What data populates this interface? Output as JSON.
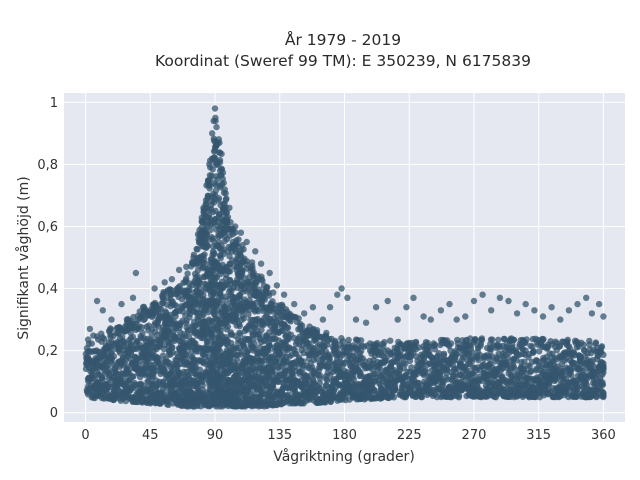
{
  "chart_data": {
    "type": "scatter",
    "title_lines": [
      "År 1979 - 2019",
      "Koordinat (Sweref 99 TM): E 350239, N 6175839"
    ],
    "xlabel": "Vågriktning (grader)",
    "ylabel": "Signifikant våghöjd (m)",
    "xlim": [
      -15,
      375
    ],
    "ylim": [
      -0.03,
      1.03
    ],
    "x_ticks": [
      0,
      45,
      90,
      135,
      180,
      225,
      270,
      315,
      360
    ],
    "x_tick_labels": [
      "0",
      "45",
      "90",
      "135",
      "180",
      "225",
      "270",
      "315",
      "360"
    ],
    "y_ticks": [
      0,
      0.2,
      0.4,
      0.6,
      0.8,
      1
    ],
    "y_tick_labels": [
      "0",
      "0,2",
      "0,4",
      "0,6",
      "0,8",
      "1"
    ],
    "grid": true,
    "marker_color": "#34566d",
    "background_color": "#e5e8f0",
    "envelope": [
      {
        "x": 0,
        "low": 0.05,
        "high": 0.24
      },
      {
        "x": 20,
        "low": 0.04,
        "high": 0.28
      },
      {
        "x": 45,
        "low": 0.03,
        "high": 0.36
      },
      {
        "x": 70,
        "low": 0.02,
        "high": 0.44
      },
      {
        "x": 80,
        "low": 0.02,
        "high": 0.62
      },
      {
        "x": 88,
        "low": 0.02,
        "high": 0.86
      },
      {
        "x": 90,
        "low": 0.02,
        "high": 0.98
      },
      {
        "x": 95,
        "low": 0.02,
        "high": 0.78
      },
      {
        "x": 100,
        "low": 0.02,
        "high": 0.62
      },
      {
        "x": 110,
        "low": 0.02,
        "high": 0.52
      },
      {
        "x": 125,
        "low": 0.02,
        "high": 0.42
      },
      {
        "x": 140,
        "low": 0.03,
        "high": 0.33
      },
      {
        "x": 160,
        "low": 0.03,
        "high": 0.27
      },
      {
        "x": 180,
        "low": 0.04,
        "high": 0.24
      },
      {
        "x": 225,
        "low": 0.05,
        "high": 0.23
      },
      {
        "x": 270,
        "low": 0.05,
        "high": 0.24
      },
      {
        "x": 315,
        "low": 0.05,
        "high": 0.24
      },
      {
        "x": 360,
        "low": 0.05,
        "high": 0.23
      }
    ],
    "outliers": [
      [
        3,
        0.27
      ],
      [
        8,
        0.36
      ],
      [
        12,
        0.33
      ],
      [
        18,
        0.3
      ],
      [
        25,
        0.35
      ],
      [
        33,
        0.37
      ],
      [
        35,
        0.45
      ],
      [
        40,
        0.34
      ],
      [
        48,
        0.4
      ],
      [
        55,
        0.42
      ],
      [
        60,
        0.43
      ],
      [
        65,
        0.46
      ],
      [
        70,
        0.47
      ],
      [
        75,
        0.5
      ],
      [
        82,
        0.66
      ],
      [
        86,
        0.8
      ],
      [
        88,
        0.9
      ],
      [
        89,
        0.94
      ],
      [
        90,
        0.98
      ],
      [
        91,
        0.92
      ],
      [
        93,
        0.87
      ],
      [
        96,
        0.74
      ],
      [
        100,
        0.66
      ],
      [
        104,
        0.6
      ],
      [
        108,
        0.58
      ],
      [
        112,
        0.55
      ],
      [
        118,
        0.52
      ],
      [
        122,
        0.48
      ],
      [
        128,
        0.45
      ],
      [
        133,
        0.41
      ],
      [
        138,
        0.38
      ],
      [
        145,
        0.35
      ],
      [
        152,
        0.32
      ],
      [
        158,
        0.34
      ],
      [
        165,
        0.3
      ],
      [
        170,
        0.34
      ],
      [
        175,
        0.38
      ],
      [
        178,
        0.4
      ],
      [
        182,
        0.37
      ],
      [
        188,
        0.3
      ],
      [
        195,
        0.29
      ],
      [
        202,
        0.34
      ],
      [
        210,
        0.36
      ],
      [
        217,
        0.3
      ],
      [
        223,
        0.34
      ],
      [
        228,
        0.37
      ],
      [
        235,
        0.31
      ],
      [
        240,
        0.3
      ],
      [
        247,
        0.33
      ],
      [
        253,
        0.35
      ],
      [
        258,
        0.3
      ],
      [
        264,
        0.31
      ],
      [
        270,
        0.36
      ],
      [
        276,
        0.38
      ],
      [
        282,
        0.33
      ],
      [
        288,
        0.37
      ],
      [
        294,
        0.36
      ],
      [
        300,
        0.32
      ],
      [
        306,
        0.35
      ],
      [
        312,
        0.33
      ],
      [
        318,
        0.31
      ],
      [
        324,
        0.34
      ],
      [
        330,
        0.3
      ],
      [
        336,
        0.33
      ],
      [
        342,
        0.35
      ],
      [
        348,
        0.37
      ],
      [
        352,
        0.32
      ],
      [
        357,
        0.35
      ],
      [
        360,
        0.31
      ]
    ]
  }
}
